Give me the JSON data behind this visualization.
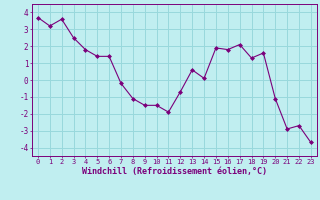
{
  "x": [
    0,
    1,
    2,
    3,
    4,
    5,
    6,
    7,
    8,
    9,
    10,
    11,
    12,
    13,
    14,
    15,
    16,
    17,
    18,
    19,
    20,
    21,
    22,
    23
  ],
  "y": [
    3.7,
    3.2,
    3.6,
    2.5,
    1.8,
    1.4,
    1.4,
    -0.2,
    -1.1,
    -1.5,
    -1.5,
    -1.9,
    -0.7,
    0.6,
    0.1,
    1.9,
    1.8,
    2.1,
    1.3,
    1.6,
    -1.1,
    -2.9,
    -2.7,
    -3.7
  ],
  "line_color": "#7B007B",
  "marker": "D",
  "marker_size": 2.0,
  "bg_color": "#c0eef0",
  "grid_color": "#98d8dc",
  "xlabel": "Windchill (Refroidissement éolien,°C)",
  "xlabel_color": "#7B007B",
  "ylim": [
    -4.5,
    4.5
  ],
  "yticks": [
    -4,
    -3,
    -2,
    -1,
    0,
    1,
    2,
    3,
    4
  ],
  "xlim": [
    -0.5,
    23.5
  ],
  "xticks": [
    0,
    1,
    2,
    3,
    4,
    5,
    6,
    7,
    8,
    9,
    10,
    11,
    12,
    13,
    14,
    15,
    16,
    17,
    18,
    19,
    20,
    21,
    22,
    23
  ],
  "tick_color": "#7B007B",
  "spine_color": "#7B007B",
  "axis_bg": "#c0eef0",
  "tick_fontsize": 5.0,
  "xlabel_fontsize": 6.0
}
